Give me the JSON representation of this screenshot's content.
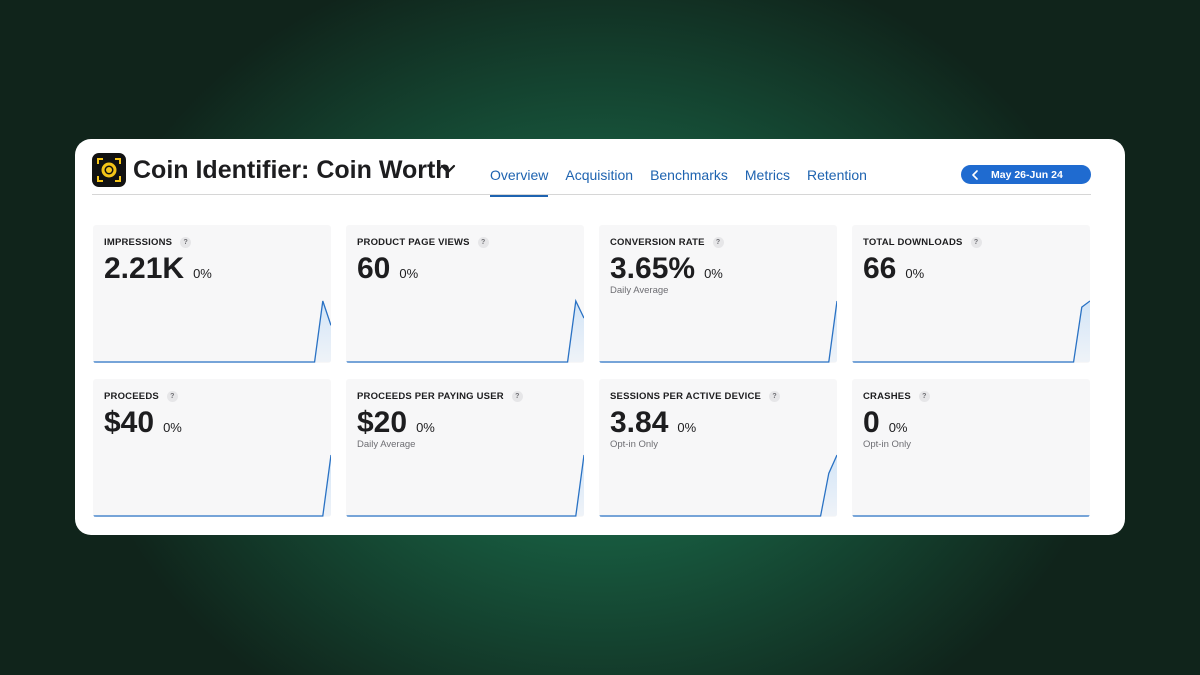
{
  "app": {
    "title": "Coin Identifier: Coin Worth",
    "icon": "coin-scanner-app-icon",
    "menu_icon": "chevron-down-icon"
  },
  "tabs": [
    {
      "label": "Overview",
      "active": true
    },
    {
      "label": "Acquisition",
      "active": false
    },
    {
      "label": "Benchmarks",
      "active": false
    },
    {
      "label": "Metrics",
      "active": false
    },
    {
      "label": "Retention",
      "active": false
    }
  ],
  "date_range": {
    "label": "May 26-Jun 24",
    "icon": "chevron-left-icon"
  },
  "colors": {
    "accent": "#1e63b0",
    "pill": "#1f6bd0",
    "line": "#2a72c4",
    "fill": "#cfe3f7"
  },
  "metrics": [
    {
      "title": "IMPRESSIONS",
      "value": "2.21K",
      "change": "0%",
      "sub": "",
      "trend": [
        0,
        0,
        0,
        0,
        0,
        0,
        0,
        0,
        0,
        0,
        0,
        0,
        0,
        0,
        0,
        0,
        0,
        0,
        0,
        0,
        0,
        0,
        0,
        0,
        0,
        0,
        0,
        0,
        1,
        0.6
      ]
    },
    {
      "title": "PRODUCT PAGE VIEWS",
      "value": "60",
      "change": "0%",
      "sub": "",
      "trend": [
        0,
        0,
        0,
        0,
        0,
        0,
        0,
        0,
        0,
        0,
        0,
        0,
        0,
        0,
        0,
        0,
        0,
        0,
        0,
        0,
        0,
        0,
        0,
        0,
        0,
        0,
        0,
        0,
        1,
        0.72
      ]
    },
    {
      "title": "CONVERSION RATE",
      "value": "3.65%",
      "change": "0%",
      "sub": "Daily Average",
      "trend": [
        0,
        0,
        0,
        0,
        0,
        0,
        0,
        0,
        0,
        0,
        0,
        0,
        0,
        0,
        0,
        0,
        0,
        0,
        0,
        0,
        0,
        0,
        0,
        0,
        0,
        0,
        0,
        0,
        0,
        1
      ]
    },
    {
      "title": "TOTAL DOWNLOADS",
      "value": "66",
      "change": "0%",
      "sub": "",
      "trend": [
        0,
        0,
        0,
        0,
        0,
        0,
        0,
        0,
        0,
        0,
        0,
        0,
        0,
        0,
        0,
        0,
        0,
        0,
        0,
        0,
        0,
        0,
        0,
        0,
        0,
        0,
        0,
        0,
        0.9,
        1
      ]
    },
    {
      "title": "PROCEEDS",
      "value": "$40",
      "change": "0%",
      "sub": "",
      "trend": [
        0,
        0,
        0,
        0,
        0,
        0,
        0,
        0,
        0,
        0,
        0,
        0,
        0,
        0,
        0,
        0,
        0,
        0,
        0,
        0,
        0,
        0,
        0,
        0,
        0,
        0,
        0,
        0,
        0,
        1
      ]
    },
    {
      "title": "PROCEEDS PER PAYING USER",
      "value": "$20",
      "change": "0%",
      "sub": "Daily Average",
      "trend": [
        0,
        0,
        0,
        0,
        0,
        0,
        0,
        0,
        0,
        0,
        0,
        0,
        0,
        0,
        0,
        0,
        0,
        0,
        0,
        0,
        0,
        0,
        0,
        0,
        0,
        0,
        0,
        0,
        0,
        1
      ]
    },
    {
      "title": "SESSIONS PER ACTIVE DEVICE",
      "value": "3.84",
      "change": "0%",
      "sub": "Opt-in Only",
      "trend": [
        0,
        0,
        0,
        0,
        0,
        0,
        0,
        0,
        0,
        0,
        0,
        0,
        0,
        0,
        0,
        0,
        0,
        0,
        0,
        0,
        0,
        0,
        0,
        0,
        0,
        0,
        0,
        0,
        0.7,
        1
      ]
    },
    {
      "title": "CRASHES",
      "value": "0",
      "change": "0%",
      "sub": "Opt-in Only",
      "trend": [
        0,
        0,
        0,
        0,
        0,
        0,
        0,
        0,
        0,
        0,
        0,
        0,
        0,
        0,
        0,
        0,
        0,
        0,
        0,
        0,
        0,
        0,
        0,
        0,
        0,
        0,
        0,
        0,
        0,
        0
      ]
    }
  ]
}
